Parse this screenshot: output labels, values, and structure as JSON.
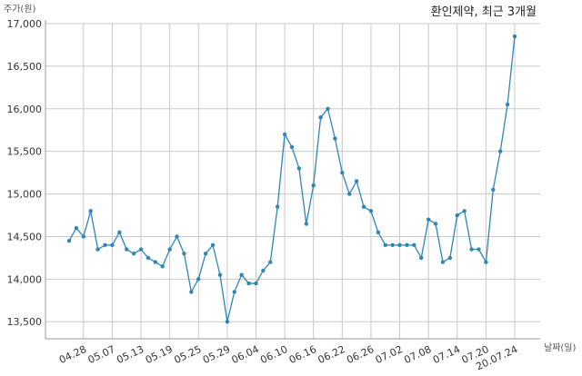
{
  "chart_data": {
    "type": "line",
    "title": "환인제약, 최근 3개월",
    "xlabel": "날짜(일)",
    "ylabel": "주가(원)",
    "ylim": [
      13300,
      17000
    ],
    "yticks": [
      13500,
      14000,
      14500,
      15000,
      15500,
      16000,
      16500,
      17000
    ],
    "ytick_labels": [
      "13,500",
      "14,000",
      "14,500",
      "15,000",
      "15,500",
      "16,000",
      "16,500",
      "17,000"
    ],
    "xticks": [
      {
        "index": 2,
        "label": "04.28"
      },
      {
        "index": 6,
        "label": "05.07"
      },
      {
        "index": 10,
        "label": "05.13"
      },
      {
        "index": 14,
        "label": "05.19"
      },
      {
        "index": 18,
        "label": "05.25"
      },
      {
        "index": 22,
        "label": "05.29"
      },
      {
        "index": 26,
        "label": "06.04"
      },
      {
        "index": 30,
        "label": "06.10"
      },
      {
        "index": 34,
        "label": "06.16"
      },
      {
        "index": 38,
        "label": "06.22"
      },
      {
        "index": 42,
        "label": "06.26"
      },
      {
        "index": 46,
        "label": "07.02"
      },
      {
        "index": 50,
        "label": "07.08"
      },
      {
        "index": 54,
        "label": "07.14"
      },
      {
        "index": 58,
        "label": "07.20"
      },
      {
        "index": 62,
        "label": "20.07.24"
      }
    ],
    "grid": true,
    "series": [
      {
        "color": "#2e86b8",
        "values": [
          14450,
          14600,
          14500,
          14800,
          14350,
          14400,
          14400,
          14550,
          14350,
          14300,
          14350,
          14250,
          14200,
          14150,
          14350,
          14500,
          14300,
          13850,
          14000,
          14300,
          14400,
          14050,
          13500,
          13850,
          14050,
          13950,
          13950,
          14100,
          14200,
          14850,
          15700,
          15550,
          15300,
          14650,
          15100,
          15900,
          16000,
          15650,
          15250,
          15000,
          15150,
          14850,
          14800,
          14550,
          14400,
          14400,
          14400,
          14400,
          14400,
          14250,
          14700,
          14650,
          14200,
          14250,
          14750,
          14800,
          14350,
          14350,
          14200,
          15050,
          15500,
          16050,
          16850
        ]
      }
    ]
  }
}
